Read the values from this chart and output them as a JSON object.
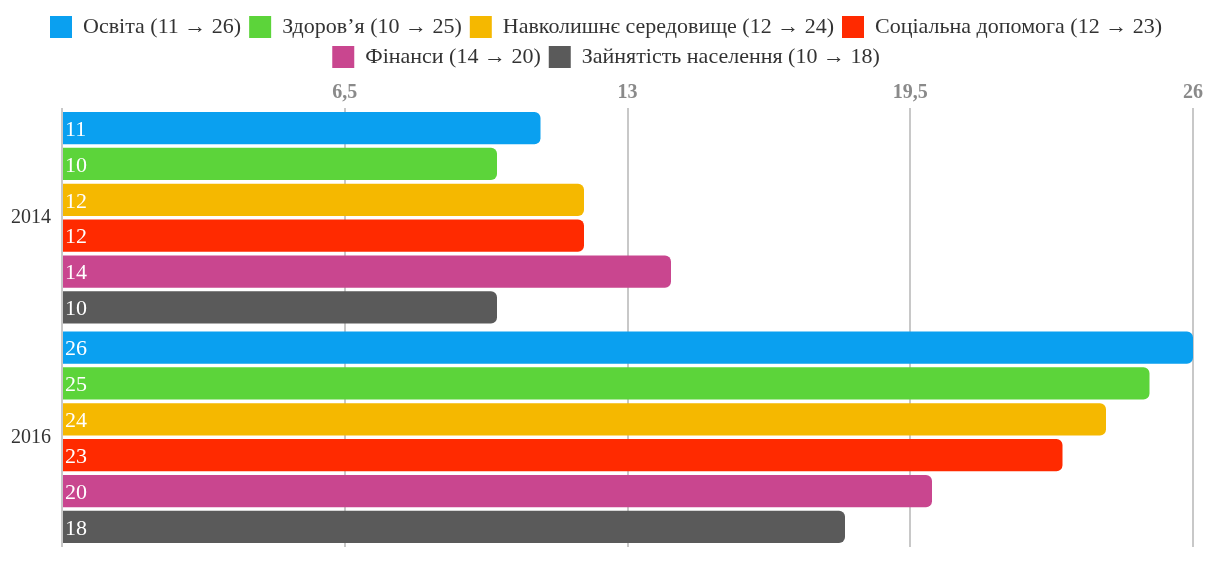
{
  "chart_data": {
    "type": "bar",
    "orientation": "horizontal",
    "categories": [
      "2014",
      "2016"
    ],
    "series": [
      {
        "name": "Освіта (11 → 26)",
        "color": "#0aa0f0",
        "values": [
          11,
          26
        ]
      },
      {
        "name": "Здоров’я (10 → 25)",
        "color": "#5cd43a",
        "values": [
          10,
          25
        ]
      },
      {
        "name": "Навколишнє середовище (12 → 24)",
        "color": "#f5b800",
        "values": [
          12,
          24
        ]
      },
      {
        "name": "Соціальна допомога (12 → 23)",
        "color": "#ff2a00",
        "values": [
          12,
          23
        ]
      },
      {
        "name": "Фінанси (14 → 20)",
        "color": "#c9468f",
        "values": [
          14,
          20
        ]
      },
      {
        "name": "Зайнятість населення (10 → 18)",
        "color": "#5a5a5a",
        "values": [
          10,
          18
        ]
      }
    ],
    "xlim": [
      0,
      26
    ],
    "xticks": [
      {
        "value": 0,
        "label": null
      },
      {
        "value": 6.5,
        "label": "6,5"
      },
      13,
      {
        "value": 19.5,
        "label": "19,5"
      },
      26
    ],
    "grid": "x",
    "legend": "top",
    "data_labels": true
  }
}
